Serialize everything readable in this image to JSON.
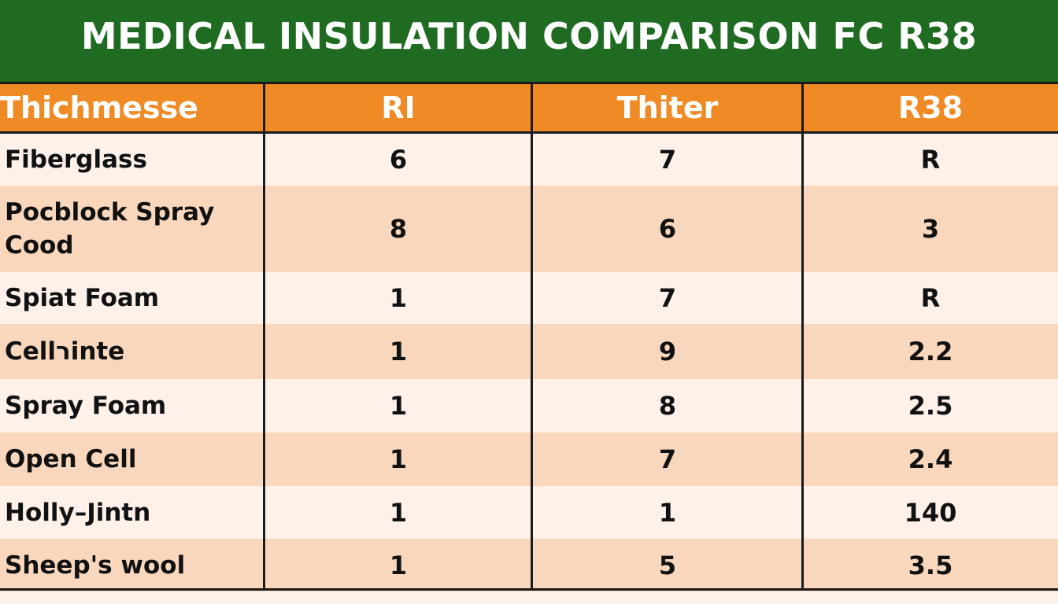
{
  "chart_data": {
    "type": "table",
    "title": "MEDICAL INSULATION COMPARISON FC R38",
    "columns": [
      "Thichmesse",
      "RI",
      "Thiter",
      "R38"
    ],
    "rows": [
      [
        "Fiberglass",
        "6",
        "7",
        "R"
      ],
      [
        "Pocblock Spray Cood",
        "8",
        "6",
        "3"
      ],
      [
        "Spiat Foam",
        "1",
        "7",
        "R"
      ],
      [
        "Cellרinte",
        "1",
        "9",
        "2.2"
      ],
      [
        "Spray Foam",
        "1",
        "8",
        "2.5"
      ],
      [
        "Open Cell",
        "1",
        "7",
        "2.4"
      ],
      [
        "Holly–Jintn",
        "1",
        "1",
        "140"
      ],
      [
        "Sheep's wool",
        "1",
        "5",
        "3.5"
      ]
    ]
  },
  "colors": {
    "title_bg": "#1f6b22",
    "header_bg": "#f08a24",
    "row_light": "#fdf1ea",
    "row_dark": "#f9d7bd"
  }
}
